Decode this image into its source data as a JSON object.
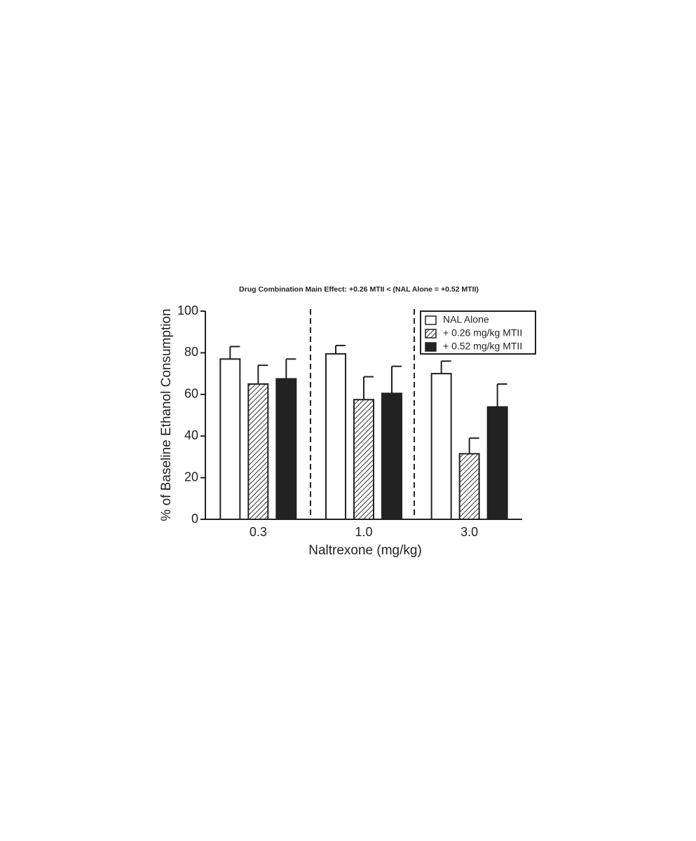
{
  "chart_data": {
    "type": "bar",
    "title": "Drug Combination Main  Effect: +0.26 MTII < (NAL Alone = +0.52 MTII)",
    "x_label": "Naltrexone (mg/kg)",
    "y_label": "% of Baseline Ethanol Consumption",
    "categories": [
      "0.3",
      "1.0",
      "3.0"
    ],
    "series": [
      {
        "name": "NAL Alone",
        "color": "#ffffff",
        "values": [
          77,
          79.5,
          70
        ],
        "errors": [
          6,
          4,
          6
        ]
      },
      {
        "name": "+ 0.26 mg/kg MTII",
        "color": "#ffffff",
        "pattern": "diagonal-hatch",
        "values": [
          65,
          57.5,
          31.5
        ],
        "errors": [
          9,
          11,
          7.5
        ]
      },
      {
        "name": "+ 0.52 mg/kg MTII",
        "color": "#222222",
        "values": [
          67.5,
          60.5,
          54
        ],
        "errors": [
          9.5,
          13,
          11
        ]
      }
    ],
    "ylim": [
      0,
      100
    ],
    "yticks": [
      0,
      20,
      40,
      60,
      80,
      100
    ],
    "legend": "upper right"
  }
}
